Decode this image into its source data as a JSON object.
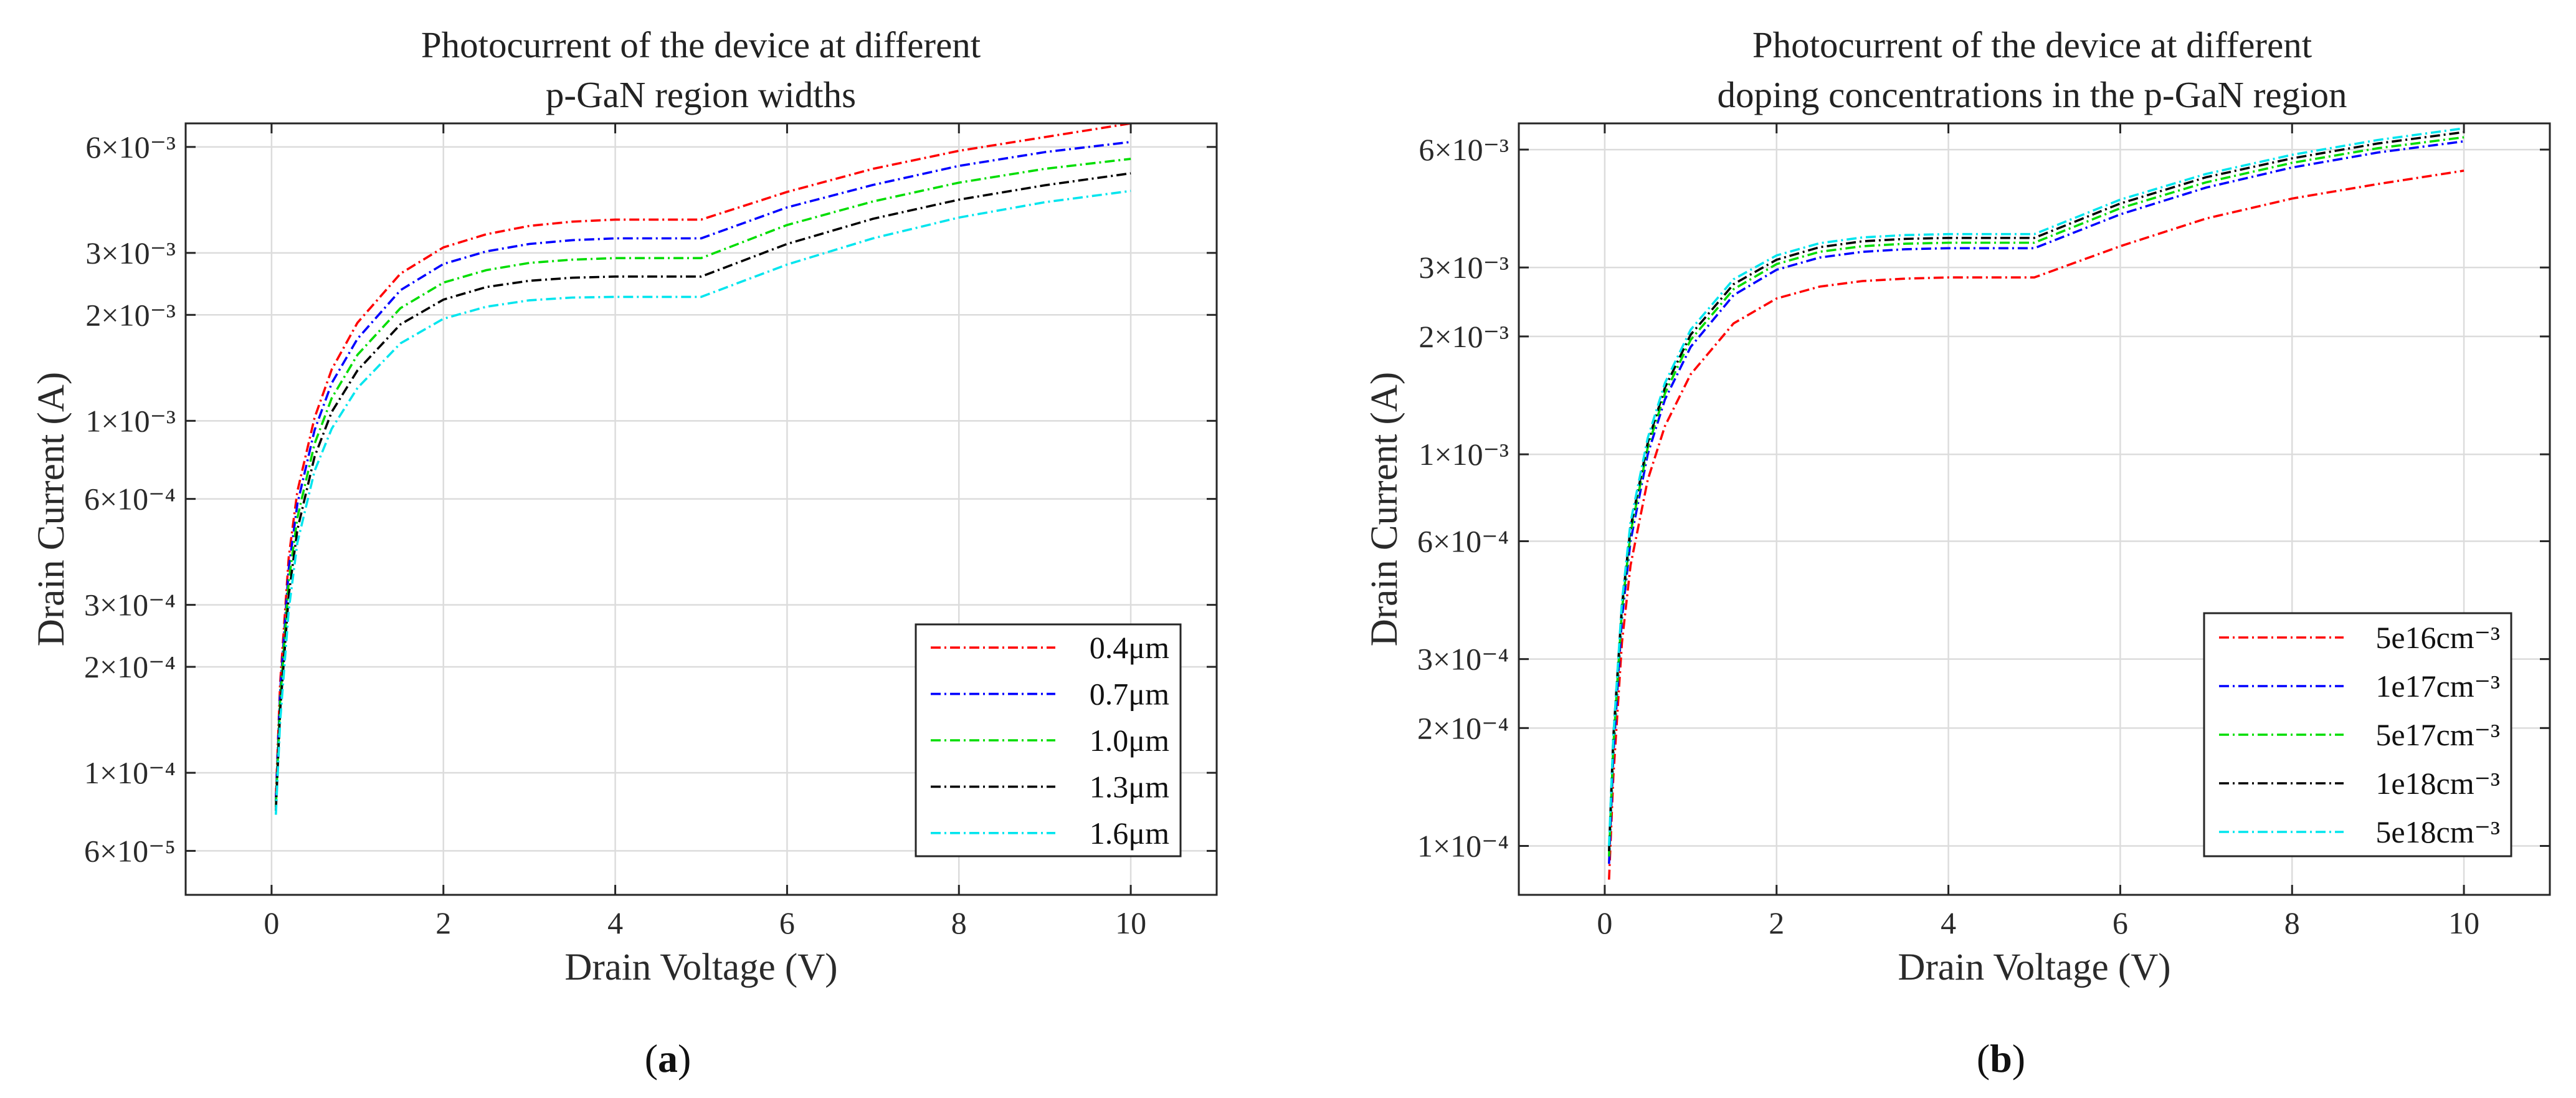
{
  "chart_data": [
    {
      "type": "line",
      "panel_label": "a",
      "title": [
        "Photocurrent of the device at different",
        "p-GaN region widths"
      ],
      "xlabel": "Drain Voltage (V)",
      "ylabel": "Drain Current (A)",
      "xlim": [
        -1,
        11
      ],
      "x_ticks": [
        "0",
        "2",
        "4",
        "6",
        "8",
        "10"
      ],
      "y_scale": "log",
      "y_ticks": [
        {
          "value": 6e-05,
          "label": "6×10⁻⁵"
        },
        {
          "value": 0.0001,
          "label": "1×10⁻⁴"
        },
        {
          "value": 0.0002,
          "label": "2×10⁻⁴"
        },
        {
          "value": 0.0003,
          "label": "3×10⁻⁴"
        },
        {
          "value": 0.0006,
          "label": "6×10⁻⁴"
        },
        {
          "value": 0.001,
          "label": "1×10⁻³"
        },
        {
          "value": 0.002,
          "label": "2×10⁻³"
        },
        {
          "value": 0.003,
          "label": "3×10⁻³"
        },
        {
          "value": 0.006,
          "label": "6×10⁻³"
        }
      ],
      "grid": true,
      "legend_position": "lower-right",
      "x": [
        0.05,
        0.1,
        0.2,
        0.3,
        0.5,
        0.7,
        1.0,
        1.5,
        2.0,
        2.5,
        3.0,
        3.5,
        4.0,
        4.5,
        5.0,
        6.0,
        7.0,
        8.0,
        9.0,
        10.0
      ],
      "series": [
        {
          "name": "0.4μm",
          "color": "#ff0000",
          "values": [
            8.5e-05,
            0.00018,
            0.00041,
            0.00063,
            0.00102,
            0.0014,
            0.0019,
            0.00262,
            0.00311,
            0.00339,
            0.00358,
            0.00368,
            0.00373,
            0.00373,
            0.00373,
            0.00447,
            0.0052,
            0.00585,
            0.0064,
            0.007
          ]
        },
        {
          "name": "0.7μm",
          "color": "#0000ff",
          "values": [
            8.3e-05,
            0.00017,
            0.00038,
            0.00058,
            0.00094,
            0.00128,
            0.00171,
            0.00235,
            0.00279,
            0.00303,
            0.00318,
            0.00326,
            0.0033,
            0.0033,
            0.0033,
            0.00404,
            0.00468,
            0.0053,
            0.0058,
            0.0062
          ]
        },
        {
          "name": "1.0μm",
          "color": "#00dd00",
          "values": [
            8e-05,
            0.00016,
            0.00035,
            0.00053,
            0.00086,
            0.00116,
            0.00154,
            0.00209,
            0.00247,
            0.00268,
            0.00281,
            0.00287,
            0.0029,
            0.0029,
            0.0029,
            0.0036,
            0.0042,
            0.00475,
            0.0052,
            0.00555
          ]
        },
        {
          "name": "1.3μm",
          "color": "#000000",
          "values": [
            7.8e-05,
            0.00015,
            0.00032,
            0.00049,
            0.00079,
            0.00106,
            0.00139,
            0.00188,
            0.00221,
            0.0024,
            0.0025,
            0.00255,
            0.00257,
            0.00257,
            0.00257,
            0.00318,
            0.00375,
            0.00425,
            0.00467,
            0.00505
          ]
        },
        {
          "name": "1.6μm",
          "color": "#00e5ee",
          "values": [
            7.6e-05,
            0.00014,
            0.00029,
            0.00045,
            0.00072,
            0.00095,
            0.00124,
            0.00166,
            0.00195,
            0.00211,
            0.0022,
            0.00224,
            0.00225,
            0.00225,
            0.00225,
            0.00278,
            0.0033,
            0.00378,
            0.00418,
            0.0045
          ]
        }
      ]
    },
    {
      "type": "line",
      "panel_label": "b",
      "title": [
        "Photocurrent of the device at different",
        "doping concentrations in the p-GaN region"
      ],
      "xlabel": "Drain Voltage (V)",
      "ylabel": "Drain Current (A)",
      "xlim": [
        -1,
        11
      ],
      "x_ticks": [
        "0",
        "2",
        "4",
        "6",
        "8",
        "10"
      ],
      "y_scale": "log",
      "y_ticks": [
        {
          "value": 0.0001,
          "label": "1×10⁻⁴"
        },
        {
          "value": 0.0002,
          "label": "2×10⁻⁴"
        },
        {
          "value": 0.0003,
          "label": "3×10⁻⁴"
        },
        {
          "value": 0.0006,
          "label": "6×10⁻⁴"
        },
        {
          "value": 0.001,
          "label": "1×10⁻³"
        },
        {
          "value": 0.002,
          "label": "2×10⁻³"
        },
        {
          "value": 0.003,
          "label": "3×10⁻³"
        },
        {
          "value": 0.006,
          "label": "6×10⁻³"
        }
      ],
      "grid": true,
      "legend_position": "lower-right",
      "x": [
        0.05,
        0.1,
        0.2,
        0.3,
        0.5,
        0.7,
        1.0,
        1.5,
        2.0,
        2.5,
        3.0,
        3.5,
        4.0,
        4.5,
        5.0,
        6.0,
        7.0,
        8.0,
        9.0,
        10.0
      ],
      "series": [
        {
          "name": "5e16cm⁻³",
          "color": "#ff0000",
          "values": [
            8.2e-05,
            0.00015,
            0.00033,
            0.00052,
            0.00086,
            0.00118,
            0.0016,
            0.00216,
            0.0025,
            0.00268,
            0.00277,
            0.00281,
            0.00283,
            0.00283,
            0.00283,
            0.0034,
            0.004,
            0.0045,
            0.0049,
            0.0053
          ]
        },
        {
          "name": "1e17cm⁻³",
          "color": "#0000ff",
          "values": [
            9e-05,
            0.00017,
            0.00038,
            0.0006,
            0.001,
            0.00138,
            0.00188,
            0.00255,
            0.00296,
            0.00318,
            0.00329,
            0.00334,
            0.00336,
            0.00336,
            0.00336,
            0.0041,
            0.0048,
            0.0054,
            0.0059,
            0.0063
          ]
        },
        {
          "name": "5e17cm⁻³",
          "color": "#00dd00",
          "values": [
            9.4e-05,
            0.00018,
            0.0004,
            0.00063,
            0.00104,
            0.00143,
            0.00196,
            0.00264,
            0.00306,
            0.00329,
            0.0034,
            0.00345,
            0.00347,
            0.00347,
            0.00347,
            0.00425,
            0.00495,
            0.00555,
            0.00605,
            0.00645
          ]
        },
        {
          "name": "1e18cm⁻³",
          "color": "#000000",
          "values": [
            9.7e-05,
            0.00019,
            0.00041,
            0.00065,
            0.00107,
            0.00148,
            0.00202,
            0.00272,
            0.00314,
            0.00338,
            0.0035,
            0.00355,
            0.00357,
            0.00357,
            0.00357,
            0.00437,
            0.0051,
            0.0057,
            0.00622,
            0.00665
          ]
        },
        {
          "name": "5e18cm⁻³",
          "color": "#00e5ee",
          "values": [
            0.0001,
            0.00019,
            0.00042,
            0.00067,
            0.0011,
            0.00152,
            0.00208,
            0.0028,
            0.00322,
            0.00346,
            0.00358,
            0.00363,
            0.00365,
            0.00365,
            0.00365,
            0.00447,
            0.0052,
            0.00582,
            0.00635,
            0.0068
          ]
        }
      ]
    }
  ]
}
